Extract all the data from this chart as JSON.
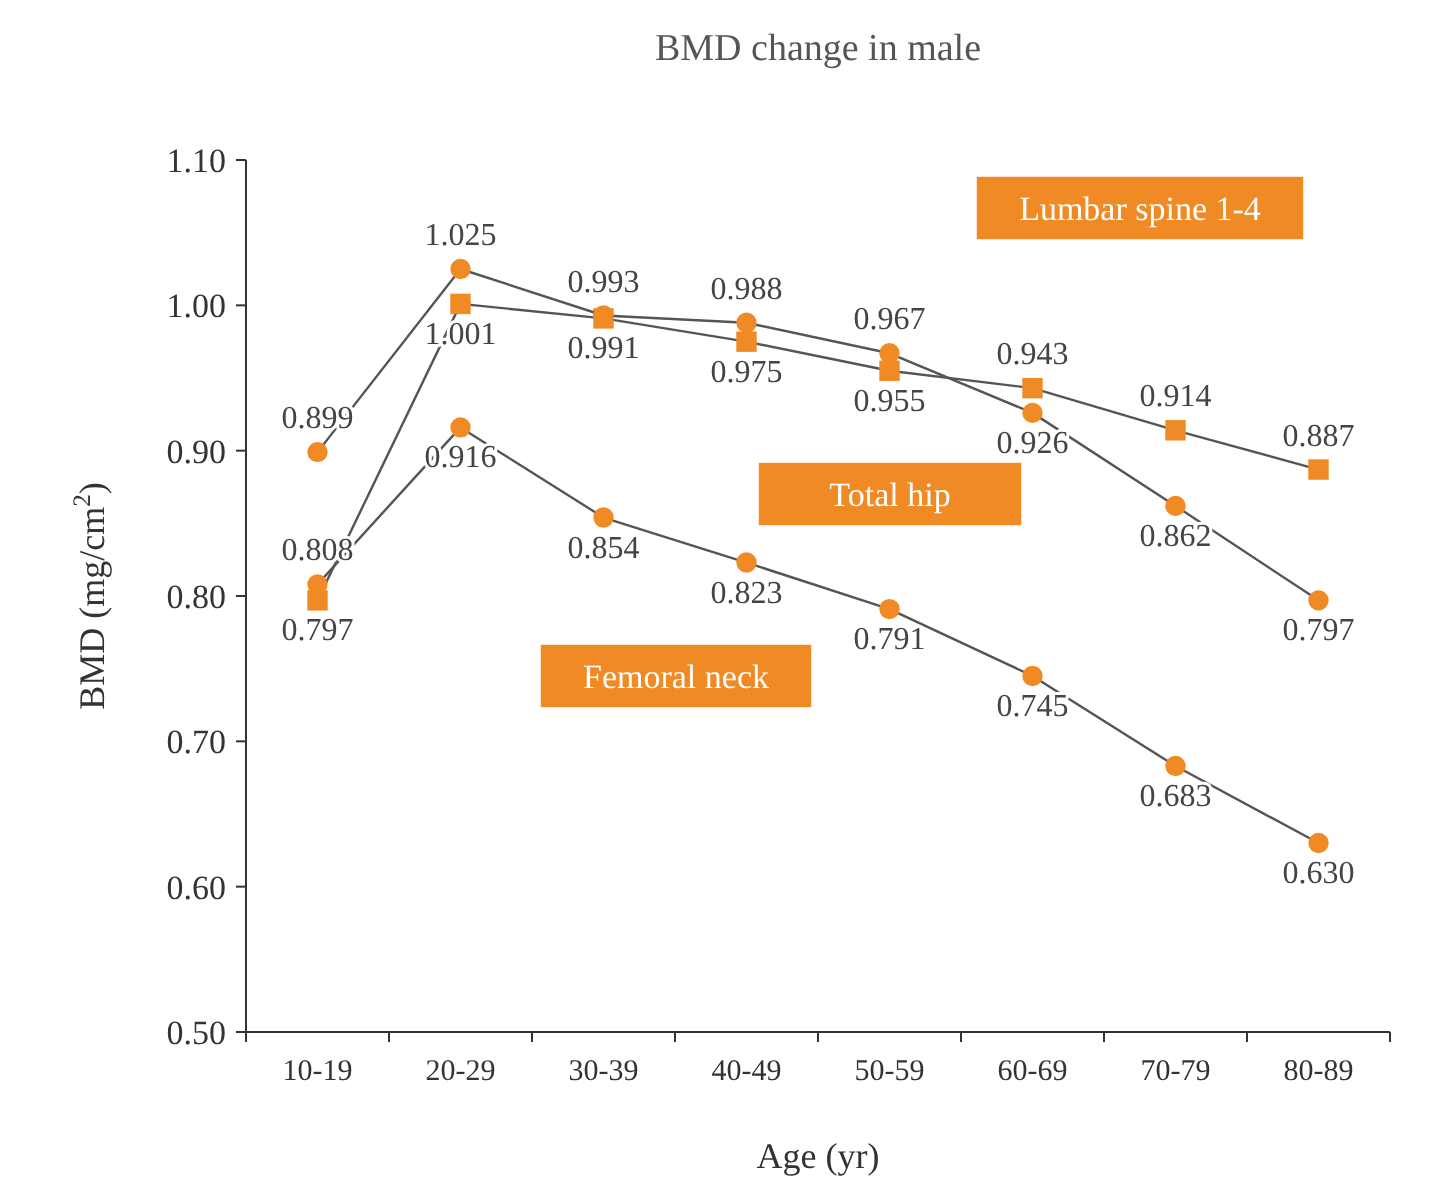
{
  "chart_data": {
    "type": "line",
    "title": "BMD change in male",
    "xlabel": "Age (yr)",
    "ylabel": "BMD (mg/cm$^{2}$)",
    "categories": [
      "10-19",
      "20-29",
      "30-39",
      "40-49",
      "50-59",
      "60-69",
      "70-79",
      "80-89"
    ],
    "series": [
      {
        "name": "Lumbar spine 1-4",
        "color": "#f08a24",
        "marker": "square",
        "values": [
          0.797,
          1.001,
          0.991,
          0.975,
          0.955,
          0.943,
          0.914,
          0.887
        ],
        "value_labels": [
          "0.797",
          "1.001",
          "0.991",
          "0.975",
          "0.955",
          "0.943",
          "0.914",
          "0.887"
        ]
      },
      {
        "name": "Total hip",
        "color": "#f08a24",
        "marker": "circle",
        "values": [
          0.899,
          1.025,
          0.993,
          0.988,
          0.967,
          0.926,
          0.862,
          0.797
        ],
        "value_labels": [
          "0.899",
          "1.025",
          "0.993",
          "0.988",
          "0.967",
          "0.926",
          "0.862",
          "0.797"
        ]
      },
      {
        "name": "Femoral neck",
        "color": "#f08a24",
        "marker": "circle",
        "values": [
          0.808,
          0.916,
          0.854,
          0.823,
          0.791,
          0.745,
          0.683,
          0.63
        ],
        "value_labels": [
          "0.808",
          "0.916",
          "0.854",
          "0.823",
          "0.791",
          "0.745",
          "0.683",
          "0.630"
        ]
      }
    ],
    "ylim": [
      0.5,
      1.1
    ],
    "yticks": [
      {
        "value": 0.5,
        "label": "0.50"
      },
      {
        "value": 0.6,
        "label": "0.60"
      },
      {
        "value": 0.7,
        "label": "0.70"
      },
      {
        "value": 0.8,
        "label": "0.80"
      },
      {
        "value": 0.9,
        "label": "0.90"
      },
      {
        "value": 1.0,
        "label": "1.00"
      },
      {
        "value": 1.1,
        "label": "1.10"
      }
    ],
    "grid": false,
    "legend": "top right",
    "line_style": "solid"
  }
}
